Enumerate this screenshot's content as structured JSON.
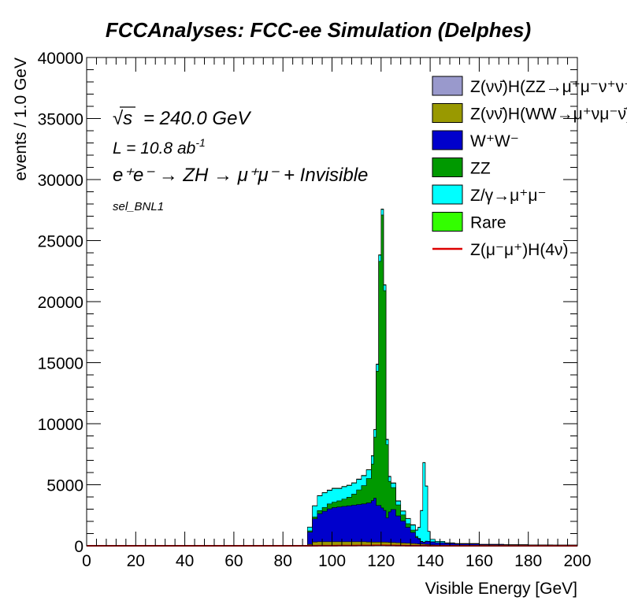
{
  "chart_data": {
    "type": "area",
    "title": "FCCAnalyses: FCC-ee Simulation (Delphes)",
    "xlabel": "Visible Energy [GeV]",
    "ylabel": "events / 1.0 GeV",
    "xlim": [
      0,
      200
    ],
    "ylim": [
      0,
      40000
    ],
    "xticks": [
      "0",
      "20",
      "40",
      "60",
      "80",
      "100",
      "120",
      "140",
      "160",
      "180",
      "200"
    ],
    "yticks": [
      "0",
      "5000",
      "10000",
      "15000",
      "20000",
      "25000",
      "30000",
      "35000",
      "40000"
    ],
    "annotations": {
      "sqrt_s": "= 240.0 GeV",
      "sqrt_sym": "√s",
      "lumi": "L = 10.8 ab",
      "lumi_exp": "-1",
      "process": "e⁺e⁻ → ZH → μ⁺μ⁻ + Invisible",
      "selection": "sel_BNL1"
    },
    "legend_position": "top-right",
    "stacked": true,
    "x": [
      88,
      90,
      92,
      94,
      96,
      98,
      100,
      102,
      104,
      106,
      108,
      110,
      112,
      114,
      116,
      117,
      118,
      119,
      120,
      121,
      122,
      123,
      124,
      126,
      128,
      130,
      132,
      134,
      135,
      136,
      137,
      138,
      139,
      140,
      142,
      146,
      150,
      160,
      170,
      180,
      190,
      200
    ],
    "series": [
      {
        "name": "Z(νν̄)H(ZZ→μ⁺μ⁻ν⁺ν⁻)",
        "color": "#9999cc",
        "values": [
          0,
          20,
          30,
          30,
          30,
          30,
          30,
          30,
          30,
          30,
          30,
          30,
          30,
          30,
          30,
          30,
          30,
          30,
          30,
          30,
          30,
          30,
          30,
          30,
          30,
          30,
          30,
          30,
          20,
          20,
          20,
          20,
          20,
          10,
          10,
          10,
          10,
          0,
          0,
          0,
          0,
          0
        ]
      },
      {
        "name": "Z(νν̄)H(WW→μ⁺νμ⁻ν̄)",
        "color": "#999900",
        "values": [
          0,
          100,
          280,
          300,
          300,
          300,
          300,
          300,
          300,
          300,
          300,
          300,
          300,
          280,
          270,
          270,
          270,
          270,
          270,
          270,
          260,
          250,
          240,
          220,
          200,
          180,
          160,
          140,
          130,
          120,
          110,
          100,
          90,
          60,
          40,
          30,
          20,
          0,
          0,
          0,
          0,
          0
        ]
      },
      {
        "name": "W⁺W⁻",
        "color": "#0000cc",
        "values": [
          0,
          1000,
          1900,
          2300,
          2500,
          2700,
          2800,
          2850,
          2900,
          2950,
          3000,
          3050,
          3100,
          3200,
          3400,
          3600,
          3000,
          3000,
          2800,
          2600,
          2000,
          2500,
          2700,
          2200,
          1800,
          1300,
          900,
          500,
          400,
          200,
          150,
          250,
          250,
          250,
          200,
          150,
          120,
          100,
          80,
          60,
          50,
          30
        ]
      },
      {
        "name": "ZZ",
        "color": "#009900",
        "values": [
          0,
          100,
          150,
          250,
          300,
          400,
          450,
          500,
          600,
          700,
          900,
          1200,
          1500,
          2000,
          3000,
          5000,
          11000,
          20000,
          24000,
          18000,
          6000,
          2500,
          1800,
          900,
          500,
          300,
          200,
          100,
          50,
          30,
          20,
          10,
          10,
          5,
          5,
          0,
          0,
          0,
          0,
          0,
          0,
          0
        ]
      },
      {
        "name": "Z/γ→μ⁺μ⁻",
        "color": "#00ffff",
        "values": [
          0,
          300,
          900,
          1200,
          1200,
          1100,
          1100,
          1000,
          1000,
          950,
          900,
          850,
          800,
          700,
          650,
          600,
          550,
          500,
          450,
          450,
          400,
          380,
          350,
          300,
          300,
          400,
          400,
          500,
          900,
          2500,
          6500,
          4500,
          800,
          200,
          100,
          50,
          30,
          20,
          10,
          5,
          5,
          0
        ]
      },
      {
        "name": "Rare",
        "color": "#33ff00",
        "values": [
          0,
          20,
          30,
          40,
          40,
          40,
          40,
          40,
          40,
          40,
          40,
          40,
          40,
          40,
          40,
          40,
          40,
          40,
          40,
          40,
          40,
          40,
          40,
          40,
          40,
          40,
          40,
          30,
          30,
          30,
          30,
          30,
          20,
          10,
          10,
          10,
          10,
          5,
          5,
          5,
          5,
          0
        ]
      },
      {
        "name": "Z(μ⁻μ⁺)H(4ν)",
        "color": "#dd0000",
        "style": "line",
        "values": [
          0,
          2,
          4,
          6,
          8,
          10,
          12,
          14,
          16,
          18,
          20,
          22,
          24,
          26,
          28,
          30,
          30,
          30,
          30,
          30,
          28,
          26,
          24,
          20,
          16,
          12,
          10,
          8,
          8,
          6,
          6,
          6,
          4,
          4,
          3,
          2,
          2,
          1,
          0,
          0,
          0,
          0
        ]
      }
    ]
  }
}
